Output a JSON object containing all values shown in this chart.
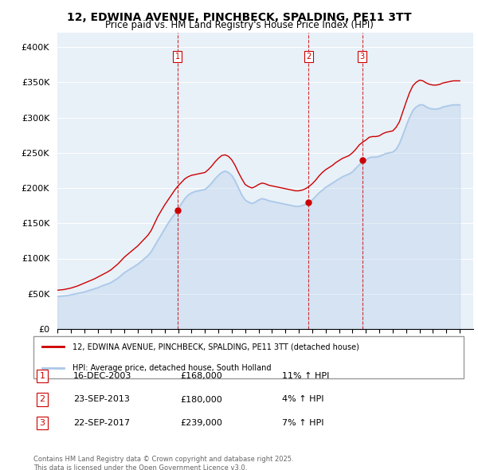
{
  "title": "12, EDWINA AVENUE, PINCHBECK, SPALDING, PE11 3TT",
  "subtitle": "Price paid vs. HM Land Registry's House Price Index (HPI)",
  "ylabel_ticks": [
    "£0",
    "£50K",
    "£100K",
    "£150K",
    "£200K",
    "£250K",
    "£300K",
    "£350K",
    "£400K"
  ],
  "ytick_values": [
    0,
    50000,
    100000,
    150000,
    200000,
    250000,
    300000,
    350000,
    400000
  ],
  "ylim": [
    0,
    420000
  ],
  "xlim_start": 1995.0,
  "xlim_end": 2026.0,
  "sale_dates": [
    2003.96,
    2013.73,
    2017.73
  ],
  "sale_prices": [
    168000,
    180000,
    239000
  ],
  "sale_labels": [
    "1",
    "2",
    "3"
  ],
  "dashed_line_color": "#cc0000",
  "red_line_color": "#cc0000",
  "blue_line_color": "#aac8e8",
  "background_color": "#e8f0f8",
  "legend_house_label": "12, EDWINA AVENUE, PINCHBECK, SPALDING, PE11 3TT (detached house)",
  "legend_hpi_label": "HPI: Average price, detached house, South Holland",
  "table_data": [
    [
      "1",
      "16-DEC-2003",
      "£168,000",
      "11% ↑ HPI"
    ],
    [
      "2",
      "23-SEP-2013",
      "£180,000",
      "4% ↑ HPI"
    ],
    [
      "3",
      "22-SEP-2017",
      "£239,000",
      "7% ↑ HPI"
    ]
  ],
  "footer": "Contains HM Land Registry data © Crown copyright and database right 2025.\nThis data is licensed under the Open Government Licence v3.0.",
  "hpi_years": [
    1995.0,
    1995.25,
    1995.5,
    1995.75,
    1996.0,
    1996.25,
    1996.5,
    1996.75,
    1997.0,
    1997.25,
    1997.5,
    1997.75,
    1998.0,
    1998.25,
    1998.5,
    1998.75,
    1999.0,
    1999.25,
    1999.5,
    1999.75,
    2000.0,
    2000.25,
    2000.5,
    2000.75,
    2001.0,
    2001.25,
    2001.5,
    2001.75,
    2002.0,
    2002.25,
    2002.5,
    2002.75,
    2003.0,
    2003.25,
    2003.5,
    2003.75,
    2004.0,
    2004.25,
    2004.5,
    2004.75,
    2005.0,
    2005.25,
    2005.5,
    2005.75,
    2006.0,
    2006.25,
    2006.5,
    2006.75,
    2007.0,
    2007.25,
    2007.5,
    2007.75,
    2008.0,
    2008.25,
    2008.5,
    2008.75,
    2009.0,
    2009.25,
    2009.5,
    2009.75,
    2010.0,
    2010.25,
    2010.5,
    2010.75,
    2011.0,
    2011.25,
    2011.5,
    2011.75,
    2012.0,
    2012.25,
    2012.5,
    2012.75,
    2013.0,
    2013.25,
    2013.5,
    2013.75,
    2014.0,
    2014.25,
    2014.5,
    2014.75,
    2015.0,
    2015.25,
    2015.5,
    2015.75,
    2016.0,
    2016.25,
    2016.5,
    2016.75,
    2017.0,
    2017.25,
    2017.5,
    2017.75,
    2018.0,
    2018.25,
    2018.5,
    2018.75,
    2019.0,
    2019.25,
    2019.5,
    2019.75,
    2020.0,
    2020.25,
    2020.5,
    2020.75,
    2021.0,
    2021.25,
    2021.5,
    2021.75,
    2022.0,
    2022.25,
    2022.5,
    2022.75,
    2023.0,
    2023.25,
    2023.5,
    2023.75,
    2024.0,
    2024.25,
    2024.5,
    2024.75,
    2025.0
  ],
  "hpi_values": [
    46000,
    46500,
    47000,
    47500,
    48500,
    49500,
    50500,
    51500,
    52500,
    54000,
    55500,
    57000,
    58500,
    60500,
    62500,
    64000,
    66000,
    69000,
    72000,
    76000,
    80000,
    83000,
    86000,
    89000,
    92000,
    96000,
    100000,
    104000,
    110000,
    118000,
    126000,
    134000,
    142000,
    150000,
    157000,
    163000,
    170000,
    178000,
    185000,
    190000,
    193000,
    195000,
    196000,
    197000,
    198000,
    202000,
    207000,
    213000,
    218000,
    222000,
    224000,
    222000,
    218000,
    210000,
    200000,
    190000,
    183000,
    180000,
    178000,
    180000,
    183000,
    185000,
    184000,
    182000,
    181000,
    180000,
    179000,
    178000,
    177000,
    176000,
    175000,
    174000,
    174000,
    175000,
    177000,
    180000,
    183000,
    188000,
    193000,
    197000,
    201000,
    204000,
    207000,
    210000,
    213000,
    216000,
    218000,
    220000,
    223000,
    228000,
    233000,
    237000,
    240000,
    243000,
    244000,
    244000,
    245000,
    247000,
    249000,
    250000,
    251000,
    255000,
    263000,
    275000,
    288000,
    300000,
    310000,
    315000,
    318000,
    318000,
    315000,
    313000,
    312000,
    312000,
    313000,
    315000,
    316000,
    317000,
    318000,
    318000,
    318000
  ],
  "red_hpi_years": [
    1995.0,
    1995.25,
    1995.5,
    1995.75,
    1996.0,
    1996.25,
    1996.5,
    1996.75,
    1997.0,
    1997.25,
    1997.5,
    1997.75,
    1998.0,
    1998.25,
    1998.5,
    1998.75,
    1999.0,
    1999.25,
    1999.5,
    1999.75,
    2000.0,
    2000.25,
    2000.5,
    2000.75,
    2001.0,
    2001.25,
    2001.5,
    2001.75,
    2002.0,
    2002.25,
    2002.5,
    2002.75,
    2003.0,
    2003.25,
    2003.5,
    2003.75,
    2004.0,
    2004.25,
    2004.5,
    2004.75,
    2005.0,
    2005.25,
    2005.5,
    2005.75,
    2006.0,
    2006.25,
    2006.5,
    2006.75,
    2007.0,
    2007.25,
    2007.5,
    2007.75,
    2008.0,
    2008.25,
    2008.5,
    2008.75,
    2009.0,
    2009.25,
    2009.5,
    2009.75,
    2010.0,
    2010.25,
    2010.5,
    2010.75,
    2011.0,
    2011.25,
    2011.5,
    2011.75,
    2012.0,
    2012.25,
    2012.5,
    2012.75,
    2013.0,
    2013.25,
    2013.5,
    2013.75,
    2014.0,
    2014.25,
    2014.5,
    2014.75,
    2015.0,
    2015.25,
    2015.5,
    2015.75,
    2016.0,
    2016.25,
    2016.5,
    2016.75,
    2017.0,
    2017.25,
    2017.5,
    2017.75,
    2018.0,
    2018.25,
    2018.5,
    2018.75,
    2019.0,
    2019.25,
    2019.5,
    2019.75,
    2020.0,
    2020.25,
    2020.5,
    2020.75,
    2021.0,
    2021.25,
    2021.5,
    2021.75,
    2022.0,
    2022.25,
    2022.5,
    2022.75,
    2023.0,
    2023.25,
    2023.5,
    2023.75,
    2024.0,
    2024.25,
    2024.5,
    2024.75,
    2025.0
  ],
  "red_values": [
    55000,
    55500,
    56000,
    57000,
    58000,
    59500,
    61000,
    63000,
    65000,
    67000,
    69000,
    71000,
    73500,
    76000,
    78500,
    81000,
    84000,
    88000,
    92000,
    97000,
    102000,
    106000,
    110000,
    114000,
    118000,
    123000,
    128000,
    133000,
    140000,
    150000,
    160000,
    168000,
    176000,
    183000,
    190000,
    197000,
    203000,
    208000,
    213000,
    216000,
    218000,
    219000,
    220000,
    221000,
    222000,
    226000,
    231000,
    237000,
    242000,
    246000,
    247000,
    245000,
    240000,
    232000,
    222000,
    213000,
    205000,
    202000,
    200000,
    202000,
    205000,
    207000,
    206000,
    204000,
    203000,
    202000,
    201000,
    200000,
    199000,
    198000,
    197000,
    196000,
    196000,
    197000,
    199000,
    202000,
    206000,
    211000,
    217000,
    222000,
    226000,
    229000,
    232000,
    236000,
    239000,
    242000,
    244000,
    246000,
    250000,
    255000,
    261000,
    265000,
    268000,
    272000,
    273000,
    273000,
    274000,
    277000,
    279000,
    280000,
    281000,
    286000,
    294000,
    308000,
    322000,
    335000,
    345000,
    350000,
    353000,
    352000,
    349000,
    347000,
    346000,
    346000,
    347000,
    349000,
    350000,
    351000,
    352000,
    352000,
    352000
  ]
}
